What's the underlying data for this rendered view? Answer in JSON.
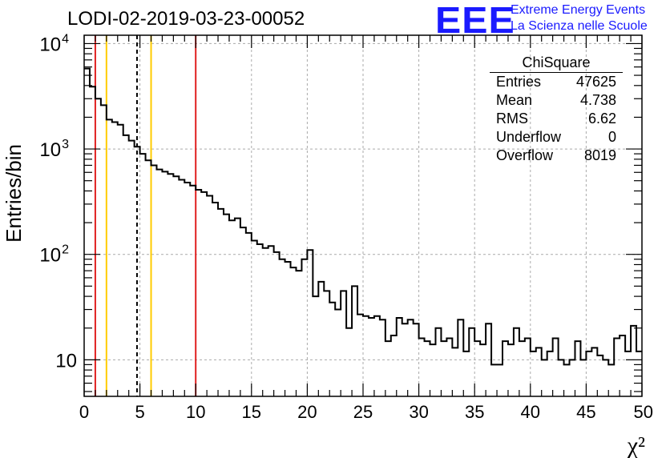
{
  "title": "LODI-02-2019-03-23-00052",
  "logo": {
    "mark": "EEE",
    "line1": "Extreme Energy Events",
    "line2": "La Scienza nelle Scuole",
    "color": "#1a1aff"
  },
  "stats": {
    "name": "ChiSquare",
    "rows": [
      {
        "label": "Entries",
        "value": "47625"
      },
      {
        "label": "Mean",
        "value": "4.738"
      },
      {
        "label": "RMS",
        "value": "6.62"
      },
      {
        "label": "Underflow",
        "value": "0"
      },
      {
        "label": "Overflow",
        "value": "8019"
      }
    ]
  },
  "chart_data": {
    "type": "histogram",
    "title": "LODI-02-2019-03-23-00052",
    "xlabel": "χ²",
    "ylabel": "Entries/bin",
    "xlim": [
      0,
      50
    ],
    "ylim": [
      4.5,
      12000
    ],
    "yscale": "log",
    "grid": true,
    "bin_width": 0.5,
    "x_ticks": [
      "0",
      "5",
      "10",
      "15",
      "20",
      "25",
      "30",
      "35",
      "40",
      "45",
      "50"
    ],
    "y_ticks": [
      {
        "value": 10,
        "label": "10",
        "sup": ""
      },
      {
        "value": 100,
        "label": "10",
        "sup": "2"
      },
      {
        "value": 1000,
        "label": "10",
        "sup": "3"
      },
      {
        "value": 10000,
        "label": "10",
        "sup": "4"
      }
    ],
    "values": [
      5800,
      3900,
      3000,
      2600,
      1900,
      1800,
      1700,
      1350,
      1200,
      1050,
      900,
      780,
      700,
      640,
      610,
      580,
      550,
      510,
      480,
      450,
      410,
      390,
      360,
      310,
      270,
      240,
      210,
      220,
      180,
      160,
      135,
      125,
      115,
      120,
      105,
      90,
      85,
      75,
      70,
      90,
      110,
      40,
      55,
      45,
      35,
      30,
      45,
      20,
      50,
      27,
      26,
      25,
      26,
      24,
      15,
      17,
      25,
      22,
      24,
      22,
      16,
      15,
      14,
      20,
      15,
      16,
      13,
      24,
      12,
      20,
      15,
      14,
      22,
      9,
      9,
      15,
      14,
      20,
      15,
      16,
      12,
      13,
      10,
      12,
      16,
      10,
      9,
      10,
      15,
      10,
      12,
      13,
      11,
      10,
      9,
      16,
      17,
      12,
      21,
      12
    ],
    "vlines": [
      {
        "x": 1.0,
        "color": "#e02020",
        "style": "solid"
      },
      {
        "x": 2.0,
        "color": "#ffcc00",
        "style": "solid"
      },
      {
        "x": 4.738,
        "color": "#000000",
        "style": "dashed"
      },
      {
        "x": 6.0,
        "color": "#ffcc00",
        "style": "solid"
      },
      {
        "x": 10.0,
        "color": "#e02020",
        "style": "solid"
      }
    ]
  }
}
